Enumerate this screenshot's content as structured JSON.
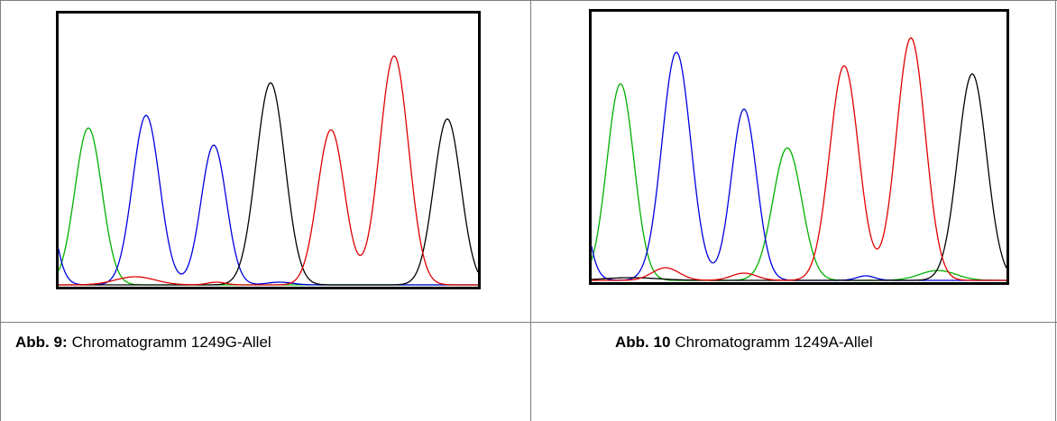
{
  "captions": [
    {
      "label": "Abb. 9:",
      "text": "Chromatogramm 1249G-Allel"
    },
    {
      "label": "Abb. 10",
      "text": "Chromatogramm 1249A-Allel"
    }
  ]
}
